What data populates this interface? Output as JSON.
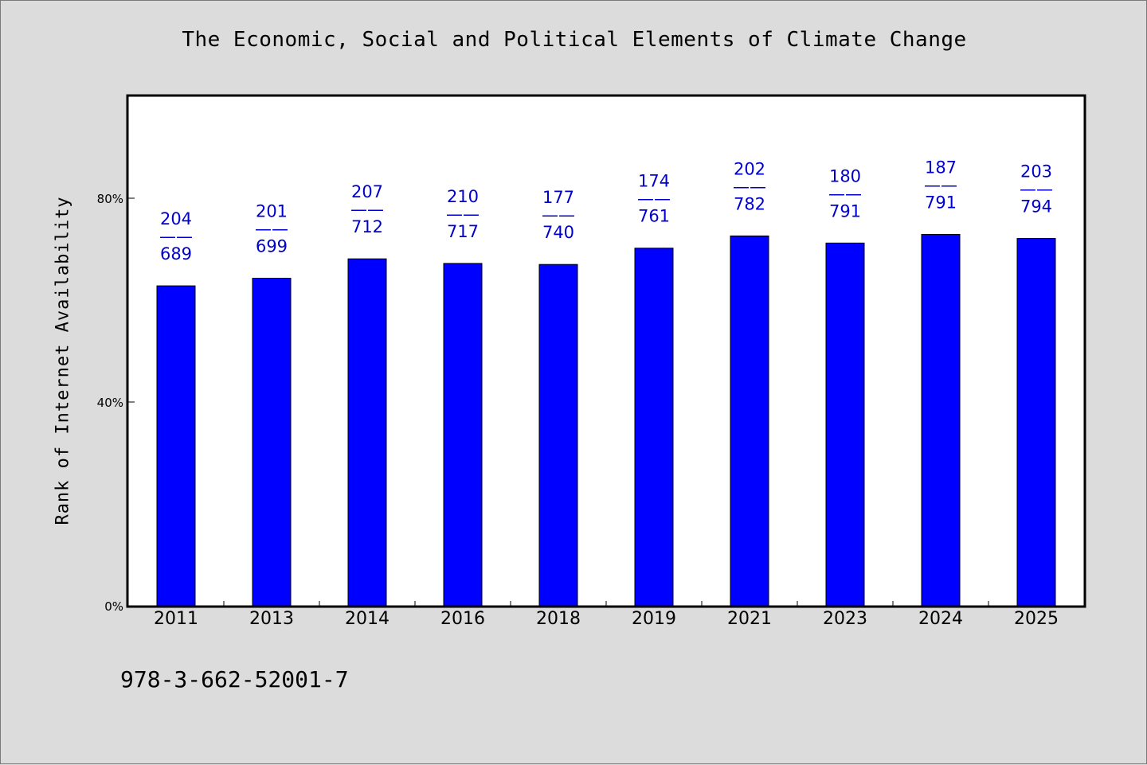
{
  "chart_data": {
    "type": "bar",
    "title": "The Economic, Social and Political Elements of Climate Change",
    "ylabel": "Rank of Internet Availability",
    "xlabel": "",
    "ylim": [
      0,
      100
    ],
    "yticks": [
      {
        "value": 0,
        "label": "0%"
      },
      {
        "value": 40,
        "label": "40%"
      },
      {
        "value": 80,
        "label": "80%"
      }
    ],
    "grid": false,
    "categories": [
      "2011",
      "2013",
      "2014",
      "2016",
      "2018",
      "2019",
      "2021",
      "2023",
      "2024",
      "2025"
    ],
    "values": [
      62.8,
      64.3,
      68.1,
      67.2,
      67.0,
      70.2,
      72.6,
      71.2,
      72.9,
      72.1
    ],
    "data_labels": [
      {
        "top": "204",
        "mid": "——",
        "bottom": "689"
      },
      {
        "top": "201",
        "mid": "——",
        "bottom": "699"
      },
      {
        "top": "207",
        "mid": "——",
        "bottom": "712"
      },
      {
        "top": "210",
        "mid": "——",
        "bottom": "717"
      },
      {
        "top": "177",
        "mid": "——",
        "bottom": "740"
      },
      {
        "top": "174",
        "mid": "——",
        "bottom": "761"
      },
      {
        "top": "202",
        "mid": "——",
        "bottom": "782"
      },
      {
        "top": "180",
        "mid": "——",
        "bottom": "791"
      },
      {
        "top": "187",
        "mid": "——",
        "bottom": "791"
      },
      {
        "top": "203",
        "mid": "——",
        "bottom": "794"
      }
    ],
    "colors": {
      "bar": "#0000ff",
      "label": "#0000cc",
      "background": "#dcdcdc",
      "plot": "#ffffff"
    }
  },
  "footer": {
    "isbn": "978-3-662-52001-7"
  }
}
